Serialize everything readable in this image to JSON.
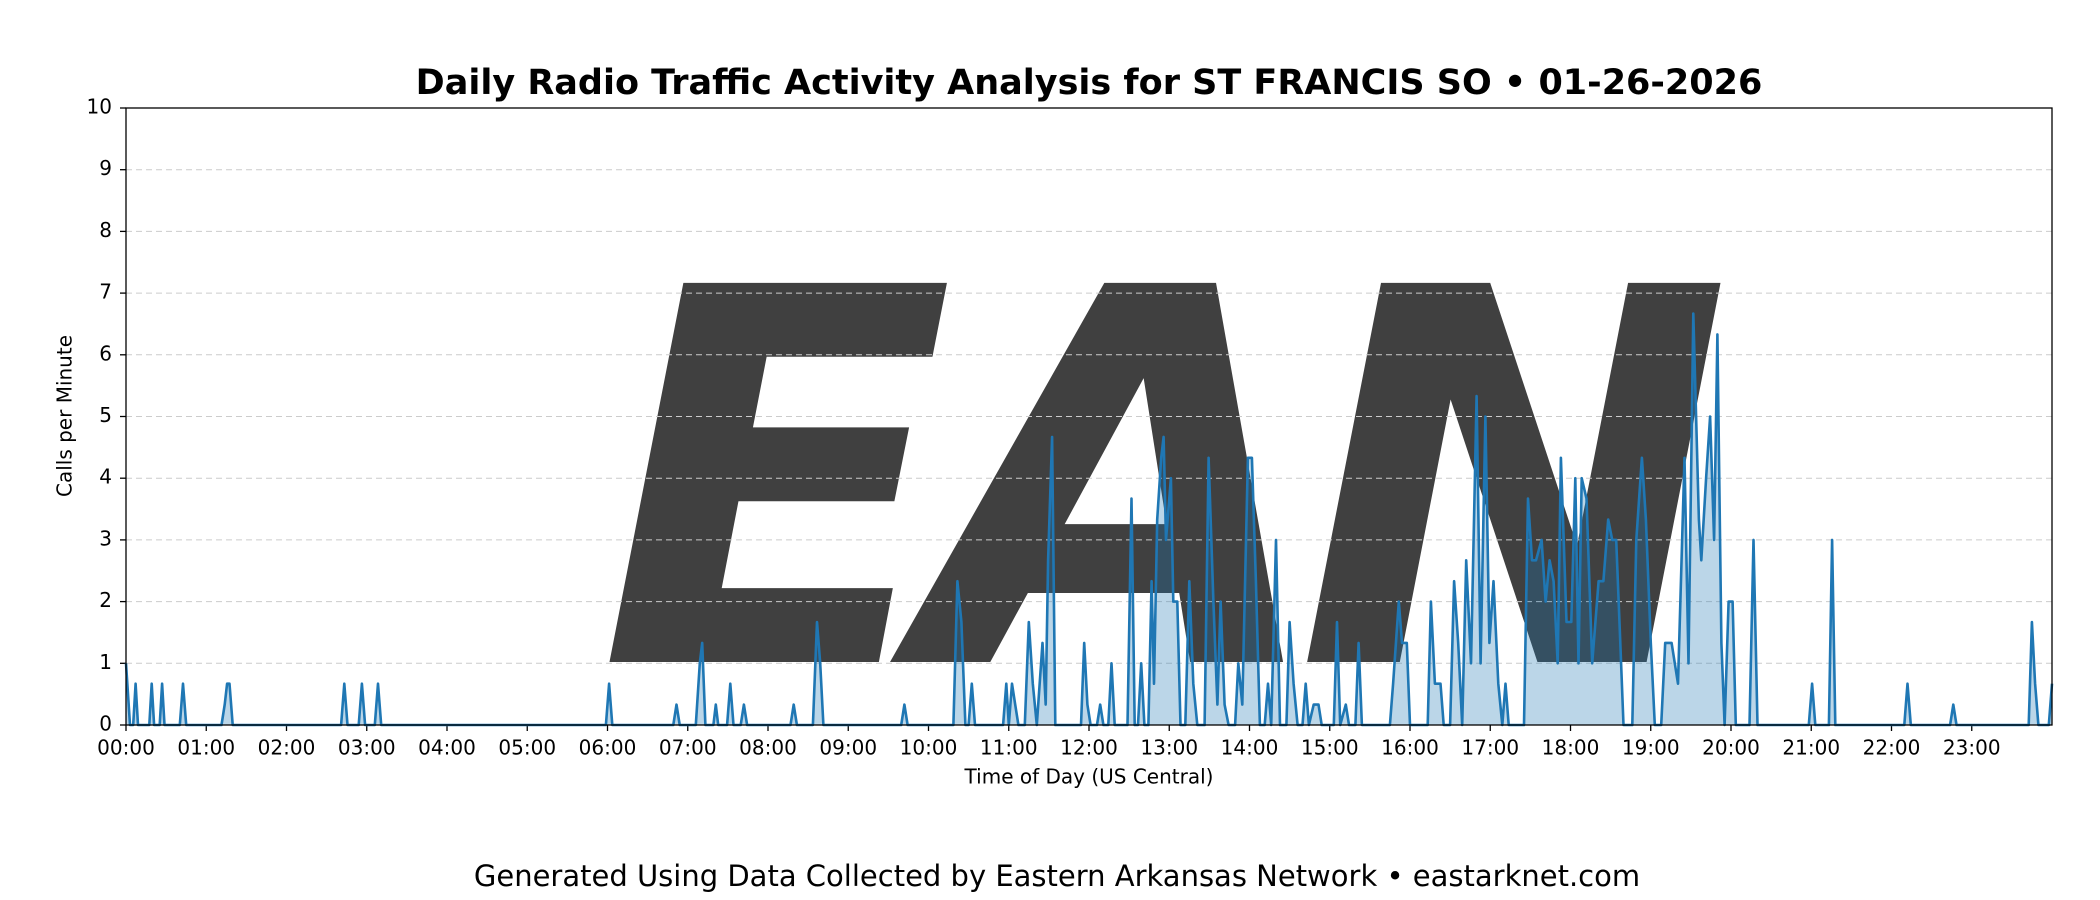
{
  "chart_data": {
    "type": "line",
    "title": "Daily Radio Traffic Activity Analysis for ST FRANCIS SO • 01-26-2026",
    "xlabel": "Time of Day (US Central)",
    "ylabel": "Calls per Minute",
    "footer": "Generated Using Data Collected by Eastern Arkansas Network • eastarknet.com",
    "watermark": "EAN",
    "xlim": [
      0,
      24
    ],
    "ylim": [
      0,
      10
    ],
    "xticks": [
      {
        "value": 0,
        "label": "00:00"
      },
      {
        "value": 1,
        "label": "01:00"
      },
      {
        "value": 2,
        "label": "02:00"
      },
      {
        "value": 3,
        "label": "03:00"
      },
      {
        "value": 4,
        "label": "04:00"
      },
      {
        "value": 5,
        "label": "05:00"
      },
      {
        "value": 6,
        "label": "06:00"
      },
      {
        "value": 7,
        "label": "07:00"
      },
      {
        "value": 8,
        "label": "08:00"
      },
      {
        "value": 9,
        "label": "09:00"
      },
      {
        "value": 10,
        "label": "10:00"
      },
      {
        "value": 11,
        "label": "11:00"
      },
      {
        "value": 12,
        "label": "12:00"
      },
      {
        "value": 13,
        "label": "13:00"
      },
      {
        "value": 14,
        "label": "14:00"
      },
      {
        "value": 15,
        "label": "15:00"
      },
      {
        "value": 16,
        "label": "16:00"
      },
      {
        "value": 17,
        "label": "17:00"
      },
      {
        "value": 18,
        "label": "18:00"
      },
      {
        "value": 19,
        "label": "19:00"
      },
      {
        "value": 20,
        "label": "20:00"
      },
      {
        "value": 21,
        "label": "21:00"
      },
      {
        "value": 22,
        "label": "22:00"
      },
      {
        "value": 23,
        "label": "23:00"
      }
    ],
    "yticks": [
      0,
      1,
      2,
      3,
      4,
      5,
      6,
      7,
      8,
      9,
      10
    ],
    "grid": true,
    "x": [
      0,
      0.05,
      0.09,
      0.12,
      0.15,
      0.29,
      0.32,
      0.35,
      0.42,
      0.45,
      0.48,
      0.67,
      0.71,
      0.75,
      1.19,
      1.23,
      1.26,
      1.29,
      1.33,
      2.68,
      2.72,
      2.76,
      2.9,
      2.94,
      2.98,
      3.1,
      3.14,
      3.18,
      5.98,
      6.02,
      6.06,
      6.82,
      6.86,
      6.9,
      7.1,
      7.15,
      7.18,
      7.22,
      7.32,
      7.35,
      7.38,
      7.49,
      7.53,
      7.57,
      7.66,
      7.7,
      7.74,
      8.28,
      8.32,
      8.36,
      8.56,
      8.61,
      8.65,
      8.69,
      9.66,
      9.7,
      9.74,
      10.31,
      10.36,
      10.41,
      10.46,
      10.5,
      10.54,
      10.58,
      10.93,
      10.97,
      11.0,
      11.04,
      11.08,
      11.12,
      11.2,
      11.25,
      11.3,
      11.35,
      11.42,
      11.46,
      11.49,
      11.54,
      11.58,
      11.9,
      11.94,
      11.98,
      12.02,
      12.1,
      12.14,
      12.18,
      12.24,
      12.28,
      12.32,
      12.48,
      12.53,
      12.57,
      12.61,
      12.65,
      12.69,
      12.74,
      12.78,
      12.81,
      12.85,
      12.9,
      12.93,
      12.96,
      13.02,
      13.05,
      13.1,
      13.14,
      13.2,
      13.25,
      13.3,
      13.35,
      13.44,
      13.49,
      13.55,
      13.6,
      13.64,
      13.69,
      13.74,
      13.82,
      13.86,
      13.91,
      13.98,
      14.03,
      14.08,
      14.13,
      14.19,
      14.23,
      14.27,
      14.33,
      14.38,
      14.46,
      14.5,
      14.55,
      14.6,
      14.66,
      14.7,
      14.74,
      14.8,
      14.86,
      14.9,
      15.05,
      15.09,
      15.13,
      15.2,
      15.24,
      15.32,
      15.36,
      15.4,
      15.75,
      15.79,
      15.86,
      15.9,
      15.96,
      16.0,
      16.22,
      16.26,
      16.31,
      16.38,
      16.42,
      16.5,
      16.55,
      16.6,
      16.65,
      16.7,
      16.76,
      16.83,
      16.88,
      16.94,
      16.99,
      17.04,
      17.1,
      17.15,
      17.19,
      17.23,
      17.42,
      17.47,
      17.52,
      17.57,
      17.64,
      17.69,
      17.74,
      17.79,
      17.84,
      17.88,
      17.95,
      18.01,
      18.06,
      18.1,
      18.14,
      18.2,
      18.27,
      18.35,
      18.41,
      18.47,
      18.52,
      18.57,
      18.62,
      18.66,
      18.77,
      18.82,
      18.89,
      18.94,
      19.0,
      19.05,
      19.13,
      19.18,
      19.26,
      19.34,
      19.42,
      19.47,
      19.53,
      19.6,
      19.63,
      19.69,
      19.74,
      19.79,
      19.83,
      19.88,
      19.92,
      19.97,
      20.02,
      20.06,
      20.23,
      20.28,
      20.33,
      20.97,
      21.01,
      21.05,
      21.22,
      21.26,
      21.3,
      22.16,
      22.2,
      22.24,
      22.73,
      22.77,
      22.81,
      23.71,
      23.75,
      23.79,
      23.83,
      23.96,
      24
    ],
    "series": [
      {
        "name": "Calls per Minute",
        "color": "#1f77b4",
        "values": [
          1,
          0,
          0,
          0.67,
          0,
          0,
          0.67,
          0,
          0,
          0.67,
          0,
          0,
          0.67,
          0,
          0,
          0.33,
          0.67,
          0.67,
          0,
          0,
          0.67,
          0,
          0,
          0.67,
          0,
          0,
          0.67,
          0,
          0,
          0.67,
          0,
          0,
          0.33,
          0,
          0,
          1,
          1.33,
          0,
          0,
          0.33,
          0,
          0,
          0.67,
          0,
          0,
          0.33,
          0,
          0,
          0.33,
          0,
          0,
          1.67,
          1,
          0,
          0,
          0.33,
          0,
          0,
          2.33,
          1.67,
          0,
          0,
          0.67,
          0,
          0,
          0.67,
          0,
          0.67,
          0.33,
          0,
          0,
          1.67,
          0.67,
          0,
          1.33,
          0.33,
          2.67,
          4.67,
          0,
          0,
          1.33,
          0.33,
          0,
          0,
          0.33,
          0,
          0,
          1,
          0,
          0,
          3.67,
          0,
          0,
          1,
          0,
          0,
          2.33,
          0.67,
          3.33,
          4.33,
          4.67,
          3,
          4,
          2,
          2,
          0,
          0,
          2.33,
          0.67,
          0,
          0,
          4.33,
          2,
          0.33,
          2,
          0.33,
          0,
          0,
          1,
          0.33,
          4.33,
          4.33,
          2.33,
          0,
          0,
          0.67,
          0,
          3,
          0,
          0,
          1.67,
          0.67,
          0,
          0,
          0.67,
          0,
          0.33,
          0.33,
          0,
          0,
          1.67,
          0,
          0.33,
          0,
          0,
          1.33,
          0,
          0,
          0.67,
          2,
          1.33,
          1.33,
          0,
          0,
          2,
          0.67,
          0.67,
          0,
          0,
          2.33,
          1.33,
          0,
          2.67,
          1,
          5.33,
          1,
          5,
          1.33,
          2.33,
          0.67,
          0,
          0.67,
          0,
          0,
          3.67,
          2.67,
          2.67,
          3,
          2,
          2.67,
          2.33,
          1,
          4.33,
          1.67,
          1.67,
          4,
          1,
          4,
          3.67,
          1,
          2.33,
          2.33,
          3.33,
          3,
          3,
          1.33,
          0,
          0,
          3,
          4.33,
          3.33,
          1.33,
          0,
          0,
          1.33,
          1.33,
          0.67,
          4.33,
          1,
          6.67,
          3.33,
          2.67,
          4,
          5,
          3,
          6.33,
          1.33,
          0,
          2,
          2,
          0,
          0,
          3,
          0,
          0,
          0.67,
          0,
          0,
          3,
          0,
          0,
          0.67,
          0,
          0,
          0.33,
          0,
          0,
          1.67,
          0.67,
          0,
          0,
          0.67
        ]
      }
    ]
  }
}
